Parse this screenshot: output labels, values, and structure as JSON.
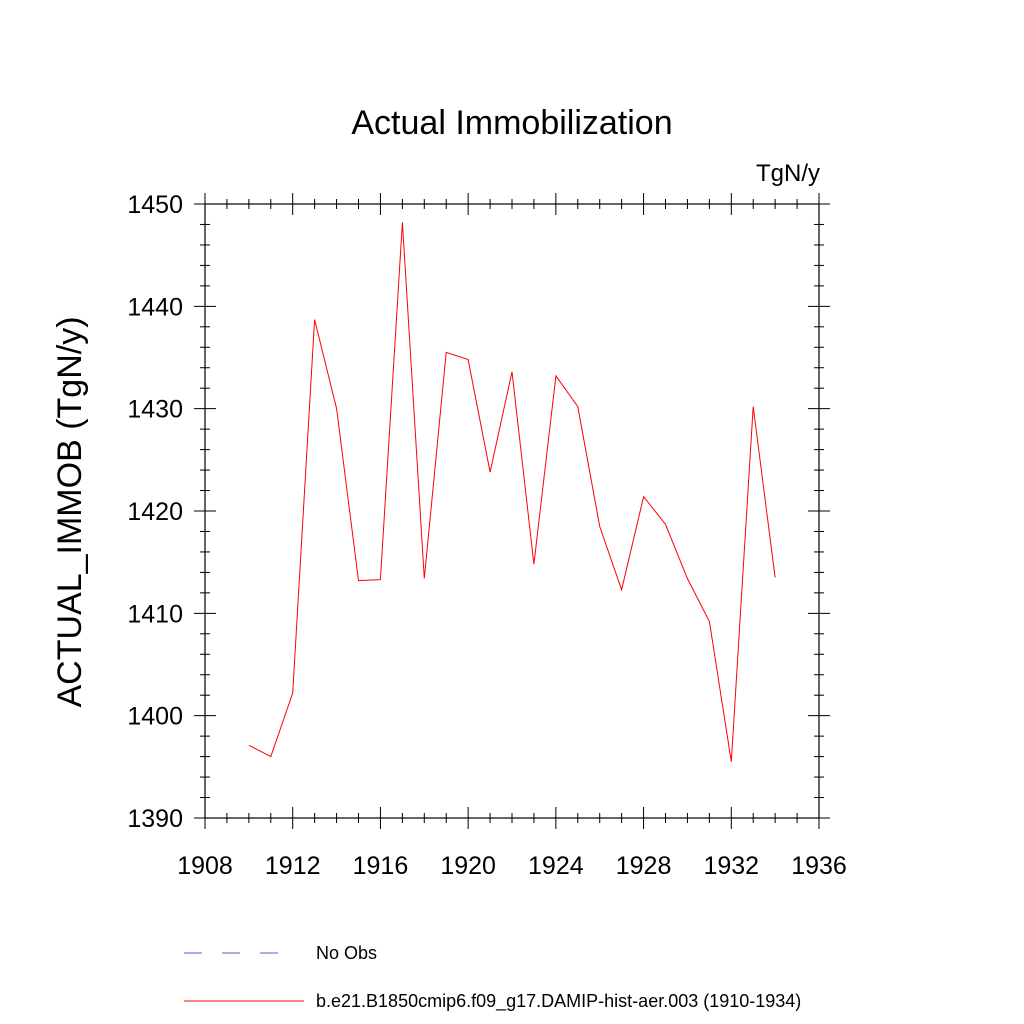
{
  "chart_data": {
    "type": "line",
    "title": "Actual Immobilization",
    "units": "TgN/y",
    "ylabel": "ACTUAL_IMMOB  (TgN/y)",
    "xlabel": "",
    "xlim": [
      1908,
      1936
    ],
    "ylim": [
      1390,
      1450
    ],
    "x_ticks": [
      1908,
      1912,
      1916,
      1920,
      1924,
      1928,
      1932,
      1936
    ],
    "y_ticks": [
      1390,
      1400,
      1410,
      1420,
      1430,
      1440,
      1450
    ],
    "grid": false,
    "legend_position": "bottom",
    "series": [
      {
        "name": "No Obs",
        "color": "#6a5acd",
        "style": "dashed",
        "x": [],
        "y": []
      },
      {
        "name": "b.e21.B1850cmip6.f09_g17.DAMIP-hist-aer.003 (1910-1934)",
        "color": "#ff0000",
        "style": "solid",
        "x": [
          1910,
          1911,
          1912,
          1913,
          1914,
          1915,
          1916,
          1917,
          1918,
          1919,
          1920,
          1921,
          1922,
          1923,
          1924,
          1925,
          1926,
          1927,
          1928,
          1929,
          1930,
          1931,
          1932,
          1933,
          1934
        ],
        "y": [
          1397.1,
          1396.0,
          1402.2,
          1438.7,
          1430.0,
          1413.2,
          1413.3,
          1448.2,
          1413.4,
          1435.5,
          1434.8,
          1423.8,
          1433.6,
          1414.8,
          1433.2,
          1430.2,
          1418.5,
          1412.3,
          1421.4,
          1418.7,
          1413.4,
          1409.2,
          1395.5,
          1430.2,
          1413.5
        ]
      }
    ]
  }
}
